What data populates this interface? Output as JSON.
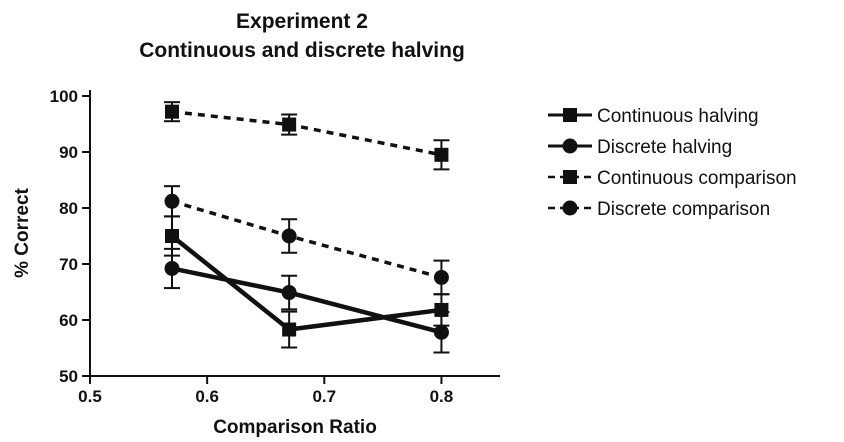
{
  "chart_data": {
    "type": "line",
    "title": [
      "Experiment 2",
      "Continuous and discrete halving"
    ],
    "xlabel": "Comparison Ratio",
    "ylabel": "% Correct",
    "xlim": [
      0.5,
      0.85
    ],
    "ylim": [
      50,
      100
    ],
    "xticks": [
      "0.5",
      "0.6",
      "0.7",
      "0.8"
    ],
    "yticks": [
      "50",
      "60",
      "70",
      "80",
      "90",
      "100"
    ],
    "grid": false,
    "legend_position": "right",
    "series": [
      {
        "name": "Continuous halving",
        "marker": "square",
        "line": "solid",
        "x": [
          0.57,
          0.67,
          0.8
        ],
        "y": [
          75,
          58.3,
          61.8
        ],
        "error": [
          3.5,
          3.2,
          2.8
        ]
      },
      {
        "name": "Discrete halving",
        "marker": "circle",
        "line": "solid",
        "x": [
          0.57,
          0.67,
          0.8
        ],
        "y": [
          69.2,
          64.9,
          57.8
        ],
        "error": [
          3.5,
          3.0,
          3.6
        ]
      },
      {
        "name": "Continuous comparison",
        "marker": "square",
        "line": "dashed",
        "x": [
          0.57,
          0.67,
          0.8
        ],
        "y": [
          97.2,
          94.9,
          89.5
        ],
        "error": [
          1.7,
          1.8,
          2.6
        ]
      },
      {
        "name": "Discrete comparison",
        "marker": "circle",
        "line": "dashed",
        "x": [
          0.57,
          0.67,
          0.8
        ],
        "y": [
          81.2,
          75.0,
          67.6
        ],
        "error": [
          2.7,
          3.0,
          3.0
        ]
      }
    ]
  }
}
